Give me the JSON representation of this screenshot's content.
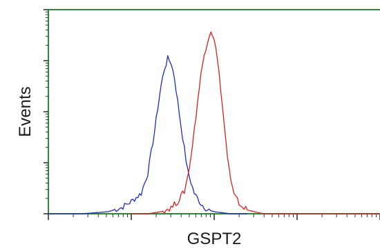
{
  "chart_data": {
    "type": "line",
    "title": "",
    "xlabel": "GSPT2",
    "ylabel": "Events",
    "legend": "none",
    "grid": false,
    "xlim": [
      0,
      100
    ],
    "ylim": [
      0,
      100
    ],
    "axis_color": "#2e8b3a",
    "series": [
      {
        "color": "#1f2ab8",
        "x": [
          0,
          10,
          18,
          22,
          25,
          28,
          30,
          31,
          32,
          33,
          34,
          35,
          36,
          37,
          38,
          39,
          40,
          41,
          42,
          44,
          46,
          48,
          50,
          55,
          60
        ],
        "y": [
          0,
          0,
          1,
          3,
          6,
          10,
          20,
          30,
          40,
          52,
          63,
          71,
          76,
          74,
          67,
          55,
          43,
          32,
          21,
          10,
          5,
          2,
          1,
          0,
          0
        ]
      },
      {
        "color": "#d41e1e",
        "x": [
          25,
          30,
          34,
          37,
          39,
          41,
          42,
          43,
          44,
          45,
          46,
          47,
          48,
          49,
          50,
          51,
          52,
          53,
          54,
          55,
          56,
          58,
          60,
          62,
          65,
          70,
          100
        ],
        "y": [
          0,
          0,
          1,
          3,
          6,
          11,
          18,
          28,
          41,
          55,
          68,
          78,
          85,
          90,
          86,
          75,
          61,
          44,
          28,
          16,
          9,
          4,
          2,
          1,
          0,
          0,
          0
        ]
      }
    ]
  }
}
